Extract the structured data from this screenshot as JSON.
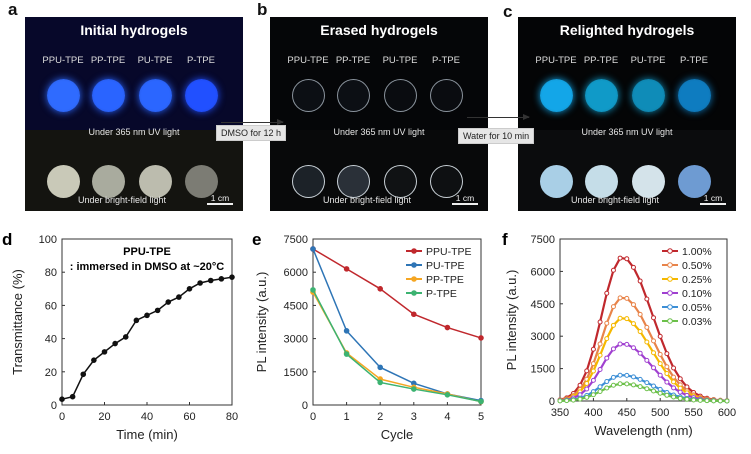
{
  "panels": {
    "a": {
      "letter": "a",
      "title": "Initial hydrogels",
      "samples": [
        "PPU-TPE",
        "PP-TPE",
        "PU-TPE",
        "P-TPE"
      ],
      "uv_caption": "Under 365 nm UV light",
      "bf_caption": "Under bright-field light",
      "scale": "1 cm",
      "uv_colors": [
        "#2f6bff",
        "#2a64ff",
        "#2b66ff",
        "#2150ff"
      ],
      "bf_colors": [
        "#c9c9b8",
        "#a9ab9e",
        "#bcbcae",
        "#7c7c74"
      ]
    },
    "b": {
      "letter": "b",
      "title": "Erased hydrogels",
      "samples": [
        "PPU-TPE",
        "PP-TPE",
        "PU-TPE",
        "P-TPE"
      ],
      "uv_caption": "Under 365 nm UV light",
      "bf_caption": "Under bright-field light",
      "scale": "1 cm",
      "uv_colors": [
        "#0c0f14",
        "#0c0f14",
        "#0a0c10",
        "#0a0c10"
      ],
      "bf_colors": [
        "#1c2228",
        "#2a3038",
        "#101214",
        "#0e1012"
      ]
    },
    "c": {
      "letter": "c",
      "title": "Relighted hydrogels",
      "samples": [
        "PPU-TPE",
        "PP-TPE",
        "PU-TPE",
        "P-TPE"
      ],
      "uv_caption": "Under 365 nm UV light",
      "bf_caption": "Under bright-field light",
      "scale": "1 cm",
      "uv_colors": [
        "#13a6e8",
        "#109ac8",
        "#0f8cb8",
        "#0e7cc0"
      ],
      "bf_colors": [
        "#a9cfe6",
        "#c5dde8",
        "#d4e3ea",
        "#6e9bd2"
      ]
    }
  },
  "steps": {
    "erase": "DMSO for 12 h",
    "relight": "Water for 10 min"
  },
  "chart_data": [
    {
      "id": "d",
      "letter": "d",
      "type": "line",
      "title": "PPU-TPE",
      "subtitle": ": immersed in DMSO at ~20°C",
      "xlabel": "Time (min)",
      "ylabel": "Transmittance (%)",
      "xlim": [
        0,
        80
      ],
      "ylim": [
        0,
        100
      ],
      "xticks": [
        0,
        20,
        40,
        60,
        80
      ],
      "yticks": [
        0,
        20,
        40,
        60,
        80,
        100
      ],
      "series": [
        {
          "name": "PPU-TPE",
          "color": "#111111",
          "x": [
            0,
            5,
            10,
            15,
            20,
            25,
            30,
            35,
            40,
            45,
            50,
            55,
            60,
            65,
            70,
            75,
            80
          ],
          "y": [
            3.5,
            5,
            18.5,
            27,
            32,
            37,
            41,
            51,
            54,
            57,
            62,
            65,
            70,
            73.5,
            75,
            76,
            77
          ]
        }
      ]
    },
    {
      "id": "e",
      "letter": "e",
      "type": "line",
      "xlabel": "Cycle",
      "ylabel": "PL intensity (a.u.)",
      "xlim": [
        0,
        5
      ],
      "ylim": [
        0,
        7500
      ],
      "xticks": [
        0,
        1,
        2,
        3,
        4,
        5
      ],
      "yticks": [
        0,
        1500,
        3000,
        4500,
        6000,
        7500
      ],
      "legend": "top-right",
      "series": [
        {
          "name": "PPU-TPE",
          "color": "#c0282d",
          "x": [
            0,
            1,
            2,
            3,
            4,
            5
          ],
          "y": [
            7050,
            6150,
            5250,
            4100,
            3500,
            3030
          ]
        },
        {
          "name": "PU-TPE",
          "color": "#2e75b6",
          "x": [
            0,
            1,
            2,
            3,
            4,
            5
          ],
          "y": [
            7050,
            3350,
            1700,
            980,
            500,
            200
          ]
        },
        {
          "name": "PP-TPE",
          "color": "#f5a623",
          "x": [
            0,
            1,
            2,
            3,
            4,
            5
          ],
          "y": [
            5100,
            2350,
            1170,
            800,
            500,
            150
          ]
        },
        {
          "name": "P-TPE",
          "color": "#3cb371",
          "x": [
            0,
            1,
            2,
            3,
            4,
            5
          ],
          "y": [
            5200,
            2300,
            1020,
            720,
            460,
            160
          ]
        }
      ]
    },
    {
      "id": "f",
      "letter": "f",
      "type": "line",
      "xlabel": "Wavelength (nm)",
      "ylabel": "PL intensity (a.u.)",
      "xlim": [
        350,
        600
      ],
      "ylim": [
        0,
        7500
      ],
      "xticks": [
        350,
        400,
        450,
        500,
        550,
        600
      ],
      "yticks": [
        0,
        1500,
        3000,
        4500,
        6000,
        7500
      ],
      "legend": "top-right",
      "x": [
        350,
        360,
        370,
        380,
        390,
        400,
        410,
        420,
        430,
        440,
        450,
        460,
        470,
        480,
        490,
        500,
        510,
        520,
        530,
        540,
        550,
        560,
        570,
        580,
        590,
        600
      ],
      "normalized_profile": [
        0.008,
        0.022,
        0.052,
        0.11,
        0.21,
        0.36,
        0.55,
        0.75,
        0.91,
        0.995,
        0.99,
        0.93,
        0.835,
        0.71,
        0.58,
        0.45,
        0.33,
        0.23,
        0.155,
        0.098,
        0.059,
        0.034,
        0.019,
        0.01,
        0.005,
        0.002
      ],
      "series": [
        {
          "name": "1.00%",
          "color": "#c0282d",
          "peak": 6650
        },
        {
          "name": "0.50%",
          "color": "#e8844a",
          "peak": 4800
        },
        {
          "name": "0.25%",
          "color": "#f5b800",
          "peak": 3850
        },
        {
          "name": "0.10%",
          "color": "#a040d0",
          "peak": 2650
        },
        {
          "name": "0.05%",
          "color": "#3d8fd6",
          "peak": 1200
        },
        {
          "name": "0.03%",
          "color": "#6cc04a",
          "peak": 800
        }
      ]
    }
  ]
}
